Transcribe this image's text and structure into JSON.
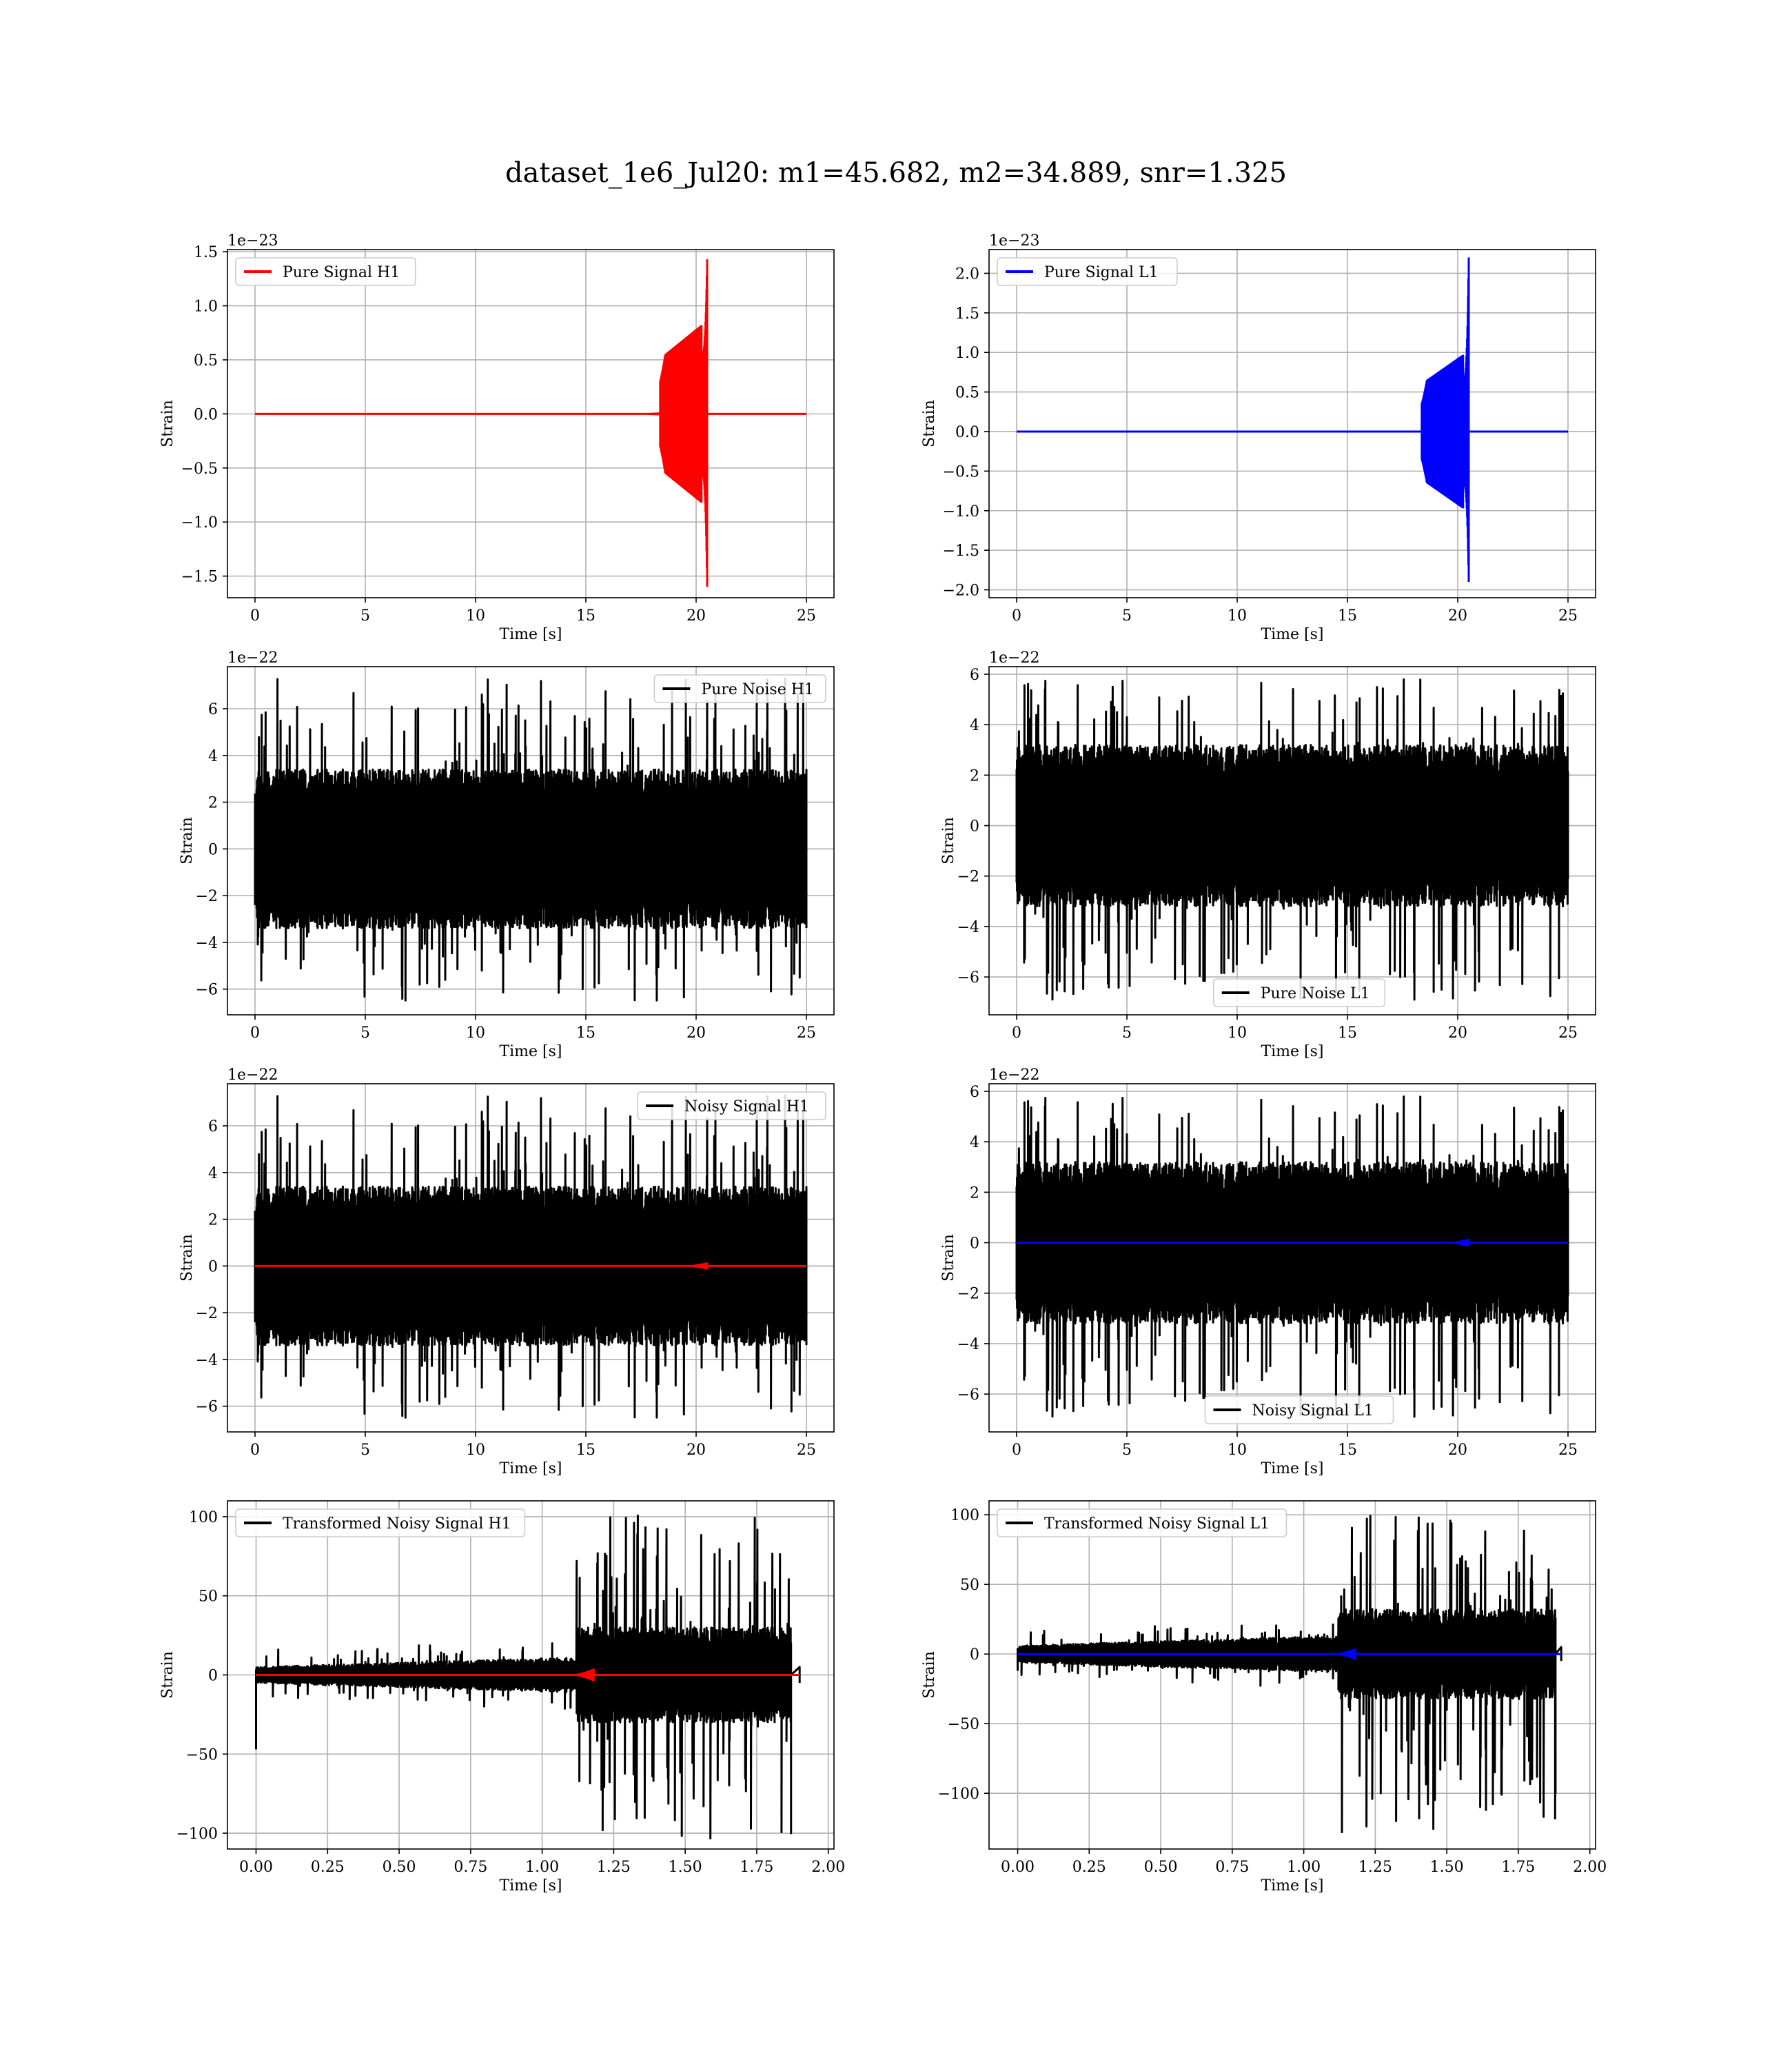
{
  "figure": {
    "suptitle": "dataset_1e6_Jul20: m1=45.682, m2=34.889, snr=1.325"
  },
  "chart_data": [
    {
      "id": "h1-pure-signal",
      "type": "line",
      "xlabel": "Time [s]",
      "ylabel": "Strain",
      "offset_text": "1e−23",
      "xlim": [
        -1.25,
        26.25
      ],
      "ylim": [
        -1.7,
        1.52
      ],
      "xticks": [
        {
          "v": 0,
          "label": "0"
        },
        {
          "v": 5,
          "label": "5"
        },
        {
          "v": 10,
          "label": "10"
        },
        {
          "v": 15,
          "label": "15"
        },
        {
          "v": 20,
          "label": "20"
        },
        {
          "v": 25,
          "label": "25"
        }
      ],
      "yticks": [
        {
          "v": -1.5,
          "label": "−1.5"
        },
        {
          "v": -1.0,
          "label": "−1.0"
        },
        {
          "v": -0.5,
          "label": "−0.5"
        },
        {
          "v": 0.0,
          "label": "0.0"
        },
        {
          "v": 0.5,
          "label": "0.5"
        },
        {
          "v": 1.0,
          "label": "1.0"
        },
        {
          "v": 1.5,
          "label": "1.5"
        }
      ],
      "grid": true,
      "legend_loc": "upper-left",
      "series": [
        {
          "name": "Pure Signal H1",
          "color": "#ff0000",
          "kind": "chirp",
          "x_start": 0,
          "x_end": 25,
          "merger_x": 20.5,
          "early_x": 18.6,
          "early_amp": 0.55,
          "peak_pos": 1.43,
          "peak_neg": -1.6
        }
      ]
    },
    {
      "id": "l1-pure-signal",
      "type": "line",
      "xlabel": "Time [s]",
      "ylabel": "Strain",
      "offset_text": "1e−23",
      "xlim": [
        -1.25,
        26.25
      ],
      "ylim": [
        -2.1,
        2.3
      ],
      "xticks": [
        {
          "v": 0,
          "label": "0"
        },
        {
          "v": 5,
          "label": "5"
        },
        {
          "v": 10,
          "label": "10"
        },
        {
          "v": 15,
          "label": "15"
        },
        {
          "v": 20,
          "label": "20"
        },
        {
          "v": 25,
          "label": "25"
        }
      ],
      "yticks": [
        {
          "v": -2.0,
          "label": "−2.0"
        },
        {
          "v": -1.5,
          "label": "−1.5"
        },
        {
          "v": -1.0,
          "label": "−1.0"
        },
        {
          "v": -0.5,
          "label": "−0.5"
        },
        {
          "v": 0.0,
          "label": "0.0"
        },
        {
          "v": 0.5,
          "label": "0.5"
        },
        {
          "v": 1.0,
          "label": "1.0"
        },
        {
          "v": 1.5,
          "label": "1.5"
        },
        {
          "v": 2.0,
          "label": "2.0"
        }
      ],
      "grid": true,
      "legend_loc": "upper-left",
      "series": [
        {
          "name": "Pure Signal L1",
          "color": "#0000ff",
          "kind": "chirp",
          "x_start": 0,
          "x_end": 25,
          "merger_x": 20.5,
          "early_x": 18.6,
          "early_amp": 0.65,
          "peak_pos": 2.2,
          "peak_neg": -1.9
        }
      ]
    },
    {
      "id": "h1-pure-noise",
      "type": "line",
      "xlabel": "Time [s]",
      "ylabel": "Strain",
      "offset_text": "1e−22",
      "xlim": [
        -1.25,
        26.25
      ],
      "ylim": [
        -7.1,
        7.8
      ],
      "xticks": [
        {
          "v": 0,
          "label": "0"
        },
        {
          "v": 5,
          "label": "5"
        },
        {
          "v": 10,
          "label": "10"
        },
        {
          "v": 15,
          "label": "15"
        },
        {
          "v": 20,
          "label": "20"
        },
        {
          "v": 25,
          "label": "25"
        }
      ],
      "yticks": [
        {
          "v": -6,
          "label": "−6"
        },
        {
          "v": -4,
          "label": "−4"
        },
        {
          "v": -2,
          "label": "−2"
        },
        {
          "v": 0,
          "label": "0"
        },
        {
          "v": 2,
          "label": "2"
        },
        {
          "v": 4,
          "label": "4"
        },
        {
          "v": 6,
          "label": "6"
        }
      ],
      "grid": true,
      "legend_loc": "upper-right",
      "series": [
        {
          "name": "Pure Noise H1",
          "color": "#000000",
          "kind": "noise",
          "x_start": 0,
          "x_end": 25,
          "band": 3.4,
          "spike_max": 7.3,
          "spike_min": -6.5,
          "seed": 11
        }
      ]
    },
    {
      "id": "l1-pure-noise",
      "type": "line",
      "xlabel": "Time [s]",
      "ylabel": "Strain",
      "offset_text": "1e−22",
      "xlim": [
        -1.25,
        26.25
      ],
      "ylim": [
        -7.5,
        6.3
      ],
      "xticks": [
        {
          "v": 0,
          "label": "0"
        },
        {
          "v": 5,
          "label": "5"
        },
        {
          "v": 10,
          "label": "10"
        },
        {
          "v": 15,
          "label": "15"
        },
        {
          "v": 20,
          "label": "20"
        },
        {
          "v": 25,
          "label": "25"
        }
      ],
      "yticks": [
        {
          "v": -6,
          "label": "−6"
        },
        {
          "v": -4,
          "label": "−4"
        },
        {
          "v": -2,
          "label": "−2"
        },
        {
          "v": 0,
          "label": "0"
        },
        {
          "v": 2,
          "label": "2"
        },
        {
          "v": 4,
          "label": "4"
        },
        {
          "v": 6,
          "label": "6"
        }
      ],
      "grid": true,
      "legend_loc": "lower-center",
      "series": [
        {
          "name": "Pure Noise L1",
          "color": "#000000",
          "kind": "noise",
          "x_start": 0,
          "x_end": 25,
          "band": 3.2,
          "spike_max": 5.8,
          "spike_min": -6.9,
          "seed": 23
        }
      ]
    },
    {
      "id": "h1-noisy-signal",
      "type": "line",
      "xlabel": "Time [s]",
      "ylabel": "Strain",
      "offset_text": "1e−22",
      "xlim": [
        -1.25,
        26.25
      ],
      "ylim": [
        -7.1,
        7.8
      ],
      "xticks": [
        {
          "v": 0,
          "label": "0"
        },
        {
          "v": 5,
          "label": "5"
        },
        {
          "v": 10,
          "label": "10"
        },
        {
          "v": 15,
          "label": "15"
        },
        {
          "v": 20,
          "label": "20"
        },
        {
          "v": 25,
          "label": "25"
        }
      ],
      "yticks": [
        {
          "v": -6,
          "label": "−6"
        },
        {
          "v": -4,
          "label": "−4"
        },
        {
          "v": -2,
          "label": "−2"
        },
        {
          "v": 0,
          "label": "0"
        },
        {
          "v": 2,
          "label": "2"
        },
        {
          "v": 4,
          "label": "4"
        },
        {
          "v": 6,
          "label": "6"
        }
      ],
      "grid": true,
      "legend_loc": "upper-right",
      "series": [
        {
          "name": "Noisy Signal H1",
          "color": "#000000",
          "kind": "noise",
          "x_start": 0,
          "x_end": 25,
          "band": 3.4,
          "spike_max": 7.3,
          "spike_min": -6.5,
          "seed": 11
        },
        {
          "name": "",
          "color": "#ff0000",
          "kind": "small-chirp",
          "x_start": 0,
          "x_end": 25,
          "merger_x": 20.5,
          "early_x": 19.0,
          "amp": 0.15
        }
      ]
    },
    {
      "id": "l1-noisy-signal",
      "type": "line",
      "xlabel": "Time [s]",
      "ylabel": "Strain",
      "offset_text": "1e−22",
      "xlim": [
        -1.25,
        26.25
      ],
      "ylim": [
        -7.5,
        6.3
      ],
      "xticks": [
        {
          "v": 0,
          "label": "0"
        },
        {
          "v": 5,
          "label": "5"
        },
        {
          "v": 10,
          "label": "10"
        },
        {
          "v": 15,
          "label": "15"
        },
        {
          "v": 20,
          "label": "20"
        },
        {
          "v": 25,
          "label": "25"
        }
      ],
      "yticks": [
        {
          "v": -6,
          "label": "−6"
        },
        {
          "v": -4,
          "label": "−4"
        },
        {
          "v": -2,
          "label": "−2"
        },
        {
          "v": 0,
          "label": "0"
        },
        {
          "v": 2,
          "label": "2"
        },
        {
          "v": 4,
          "label": "4"
        },
        {
          "v": 6,
          "label": "6"
        }
      ],
      "grid": true,
      "legend_loc": "lower-center",
      "series": [
        {
          "name": "Noisy Signal L1",
          "color": "#000000",
          "kind": "noise",
          "x_start": 0,
          "x_end": 25,
          "band": 3.2,
          "spike_max": 5.8,
          "spike_min": -6.9,
          "seed": 23
        },
        {
          "name": "",
          "color": "#0000ff",
          "kind": "small-chirp",
          "x_start": 0,
          "x_end": 25,
          "merger_x": 20.5,
          "early_x": 19.0,
          "amp": 0.15
        }
      ]
    },
    {
      "id": "h1-transformed",
      "type": "line",
      "xlabel": "Time [s]",
      "ylabel": "Strain",
      "offset_text": "",
      "xlim": [
        -0.1,
        2.02
      ],
      "ylim": [
        -110,
        110
      ],
      "xticks": [
        {
          "v": 0,
          "label": "0.00"
        },
        {
          "v": 0.25,
          "label": "0.25"
        },
        {
          "v": 0.5,
          "label": "0.50"
        },
        {
          "v": 0.75,
          "label": "0.75"
        },
        {
          "v": 1.0,
          "label": "1.00"
        },
        {
          "v": 1.25,
          "label": "1.25"
        },
        {
          "v": 1.5,
          "label": "1.50"
        },
        {
          "v": 1.75,
          "label": "1.75"
        },
        {
          "v": 2.0,
          "label": "2.00"
        }
      ],
      "yticks": [
        {
          "v": -100,
          "label": "−100"
        },
        {
          "v": -50,
          "label": "−50"
        },
        {
          "v": 0,
          "label": "0"
        },
        {
          "v": 50,
          "label": "50"
        },
        {
          "v": 100,
          "label": "100"
        }
      ],
      "grid": true,
      "legend_loc": "upper-left",
      "series": [
        {
          "name": "Transformed Noisy Signal H1",
          "color": "#000000",
          "kind": "transformed",
          "x_start": 0,
          "x_end": 1.9,
          "step_x": 1.12,
          "pre_band": 5,
          "post_band": 30,
          "spike_max": 101,
          "spike_min": -105,
          "start_dip": -47,
          "end_x": 1.87,
          "seed": 5
        },
        {
          "name": "",
          "color": "#ff0000",
          "kind": "small-chirp",
          "x_start": 0,
          "x_end": 1.9,
          "merger_x": 1.18,
          "early_x": 1.08,
          "amp": 4
        }
      ]
    },
    {
      "id": "l1-transformed",
      "type": "line",
      "xlabel": "Time [s]",
      "ylabel": "Strain",
      "offset_text": "",
      "xlim": [
        -0.1,
        2.02
      ],
      "ylim": [
        -140,
        110
      ],
      "xticks": [
        {
          "v": 0,
          "label": "0.00"
        },
        {
          "v": 0.25,
          "label": "0.25"
        },
        {
          "v": 0.5,
          "label": "0.50"
        },
        {
          "v": 0.75,
          "label": "0.75"
        },
        {
          "v": 1.0,
          "label": "1.00"
        },
        {
          "v": 1.25,
          "label": "1.25"
        },
        {
          "v": 1.5,
          "label": "1.50"
        },
        {
          "v": 1.75,
          "label": "1.75"
        },
        {
          "v": 2.0,
          "label": "2.00"
        }
      ],
      "yticks": [
        {
          "v": -100,
          "label": "−100"
        },
        {
          "v": -50,
          "label": "−50"
        },
        {
          "v": 0,
          "label": "0"
        },
        {
          "v": 50,
          "label": "50"
        },
        {
          "v": 100,
          "label": "100"
        }
      ],
      "grid": true,
      "legend_loc": "upper-left",
      "series": [
        {
          "name": "Transformed Noisy Signal L1",
          "color": "#000000",
          "kind": "transformed",
          "x_start": 0,
          "x_end": 1.9,
          "step_x": 1.12,
          "pre_band": 6,
          "post_band": 32,
          "spike_max": 100,
          "spike_min": -130,
          "start_dip": -12,
          "end_x": 1.88,
          "seed": 9
        },
        {
          "name": "",
          "color": "#0000ff",
          "kind": "small-chirp",
          "x_start": 0,
          "x_end": 1.9,
          "merger_x": 1.18,
          "early_x": 1.08,
          "amp": 4
        }
      ]
    }
  ]
}
